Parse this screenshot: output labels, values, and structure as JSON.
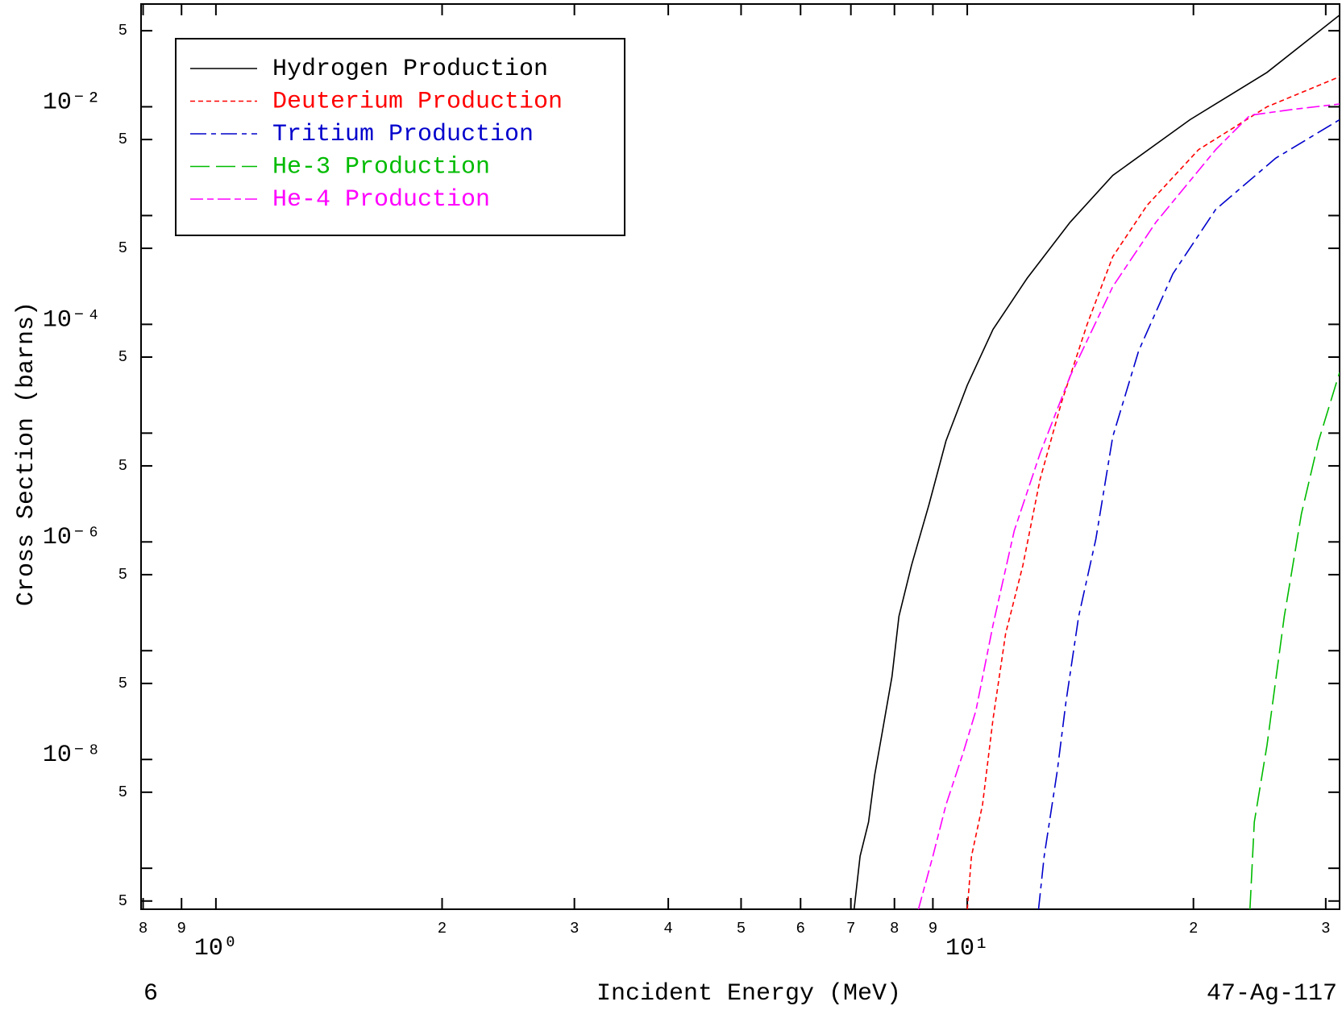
{
  "chart_data": {
    "type": "line",
    "xlabel": "Incident Energy (MeV)",
    "ylabel": "Cross Section (barns)",
    "annotations": [
      "6",
      "47-Ag-117"
    ],
    "xscale": "log",
    "yscale": "log",
    "xlim": [
      0.795,
      31.3
    ],
    "ylim": [
      4.2e-10,
      0.088
    ],
    "xticks": [
      {
        "value": 0.8,
        "label": "8"
      },
      {
        "value": 0.9,
        "label": "9"
      },
      {
        "value": 1,
        "label": "10⁰"
      },
      2,
      3,
      4,
      5,
      6,
      7,
      8,
      9,
      {
        "value": 10,
        "label": "10¹"
      },
      {
        "value": 20,
        "label": "2"
      },
      {
        "value": 30,
        "label": "3"
      }
    ],
    "yticks": [
      {
        "value": 0.05,
        "label": "5"
      },
      {
        "value": 0.01,
        "label": "10⁻²"
      },
      {
        "value": 0.005,
        "label": "5"
      },
      {
        "value": 0.0005,
        "label": "5"
      },
      {
        "value": 0.0001,
        "label": "10⁻⁴"
      },
      {
        "value": 5e-05,
        "label": "5"
      },
      {
        "value": 5e-06,
        "label": "5"
      },
      {
        "value": 1e-06,
        "label": "10⁻⁶"
      },
      {
        "value": 5e-07,
        "label": "5"
      },
      {
        "value": 5e-08,
        "label": "5"
      },
      {
        "value": 1e-08,
        "label": "10⁻⁸"
      },
      {
        "value": 5e-09,
        "label": "5"
      },
      {
        "value": 5e-10,
        "label": "5"
      }
    ],
    "yticks_unlabeled": [
      0.001,
      1e-05,
      1e-07,
      1e-09
    ],
    "legend": "upper left",
    "series": [
      {
        "name": "Hydrogen Production",
        "color": "#000000",
        "dash": "none",
        "x": [
          7.07,
          7.2,
          7.39,
          7.53,
          7.69,
          7.94,
          8.11,
          8.43,
          8.89,
          9.37,
          10,
          10.82,
          12.02,
          13.7,
          15.62,
          19.79,
          25.06,
          31.3
        ],
        "values": [
          4.2e-10,
          1.29e-09,
          2.66e-09,
          7.2e-09,
          1.63e-08,
          5.8e-08,
          2.07e-07,
          6.1e-07,
          2.18e-06,
          8.5e-06,
          2.76e-05,
          8.97e-05,
          0.000266,
          0.000865,
          0.00234,
          0.0076,
          0.0207,
          0.0697
        ]
      },
      {
        "name": "Deuterium Production",
        "color": "#ff0000",
        "dash": "6,4",
        "x": [
          10,
          10.13,
          10.48,
          10.82,
          11.25,
          11.86,
          12.5,
          13.35,
          14.44,
          15.62,
          17.35,
          20.32,
          25.06,
          31.3
        ],
        "values": [
          4.2e-10,
          1.29e-09,
          3.83e-09,
          2.34e-08,
          1.44e-07,
          6.1e-07,
          3.76e-06,
          1.92e-05,
          0.0001,
          0.000419,
          0.00124,
          0.00404,
          0.01,
          0.0189
        ]
      },
      {
        "name": "Tritium Production",
        "color": "#0000cc",
        "dash": "20,6,6,6",
        "x": [
          12.44,
          12.66,
          13.18,
          13.53,
          14.07,
          14.83,
          15.62,
          16.91,
          18.78,
          21.42,
          25.74,
          31.3
        ],
        "values": [
          4.2e-10,
          1.29e-09,
          7.9e-09,
          3.37e-08,
          2.07e-07,
          1.06e-06,
          9.3e-06,
          5.7e-05,
          0.000292,
          0.00114,
          0.00337,
          0.0076
        ]
      },
      {
        "name": "He-3 Production",
        "color": "#00bb00",
        "dash": "24,8",
        "x": [
          23.78,
          24.1,
          25.06,
          26.42,
          27.85,
          29.35,
          31.3
        ],
        "values": [
          4.2e-10,
          2.66e-09,
          1.36e-08,
          2.07e-07,
          1.82e-06,
          8.5e-06,
          3.62e-05
        ]
      },
      {
        "name": "He-4 Production",
        "color": "#ff00ff",
        "dash": "16,5,8,5",
        "x": [
          8.61,
          9.0,
          9.37,
          9.87,
          10.27,
          10.82,
          11.55,
          12.5,
          13.7,
          15.62,
          17.82,
          21.42,
          23.78,
          27.13,
          31.3
        ],
        "values": [
          4.2e-10,
          1.29e-09,
          3.83e-09,
          1.14e-08,
          2.81e-08,
          1.72e-07,
          1.27e-06,
          6.5e-06,
          3.31e-05,
          0.000222,
          0.000865,
          0.00404,
          0.00835,
          0.00947,
          0.0106
        ]
      }
    ]
  }
}
